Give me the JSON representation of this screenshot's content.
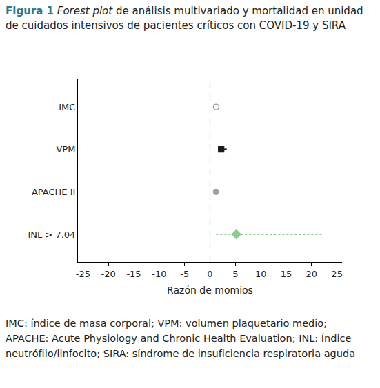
{
  "chart_data": {
    "type": "forest",
    "title": "Figura 1 Forest plot de análisis multivariado y mortalidad en unidad de cuidados intensivos de pacientes críticos con COVID-19 y SIRA",
    "caption": "IMC: índice de masa corporal; VPM: volumen plaquetario medio; APACHE: Acute Physiology and Chronic Health Evaluation; INL: Índice neutrófilo/linfocito; SIRA: síndrome de insuficiencia respiratoria aguda",
    "x_label": "Razón de momios",
    "categories": [
      "IMC",
      "VPM",
      "APACHE II",
      "INL > 7.04"
    ],
    "series": [
      {
        "values": [
          1.2,
          null,
          null,
          null
        ],
        "ci_low": [
          null,
          null,
          null,
          null
        ],
        "ci_high": [
          null,
          null,
          null,
          null
        ],
        "color": "#9a9a9a",
        "marker": "circle-open"
      },
      {
        "values": [
          null,
          2.2,
          null,
          null
        ],
        "ci_low": [
          null,
          1.6,
          null,
          null
        ],
        "ci_high": [
          null,
          3.3,
          null,
          null
        ],
        "color": "#1a1a1a",
        "marker": "square",
        "line_style": "solid"
      },
      {
        "values": [
          null,
          null,
          1.2,
          null
        ],
        "ci_low": [
          null,
          null,
          null,
          null
        ],
        "ci_high": [
          null,
          null,
          null,
          null
        ],
        "color": "#a0a0a0",
        "marker": "circle"
      },
      {
        "values": [
          null,
          null,
          null,
          5.2
        ],
        "ci_low": [
          null,
          null,
          null,
          1.2
        ],
        "ci_high": [
          null,
          null,
          null,
          22.4
        ],
        "color": "#8fc98f",
        "marker": "diamond",
        "line_style": "dotted"
      }
    ],
    "xlim": [
      -26,
      26
    ],
    "xticks": [
      -25,
      -20,
      -15,
      -10,
      -5,
      0,
      5,
      10,
      15,
      20,
      25
    ],
    "reference_line": 0,
    "grid": false
  }
}
